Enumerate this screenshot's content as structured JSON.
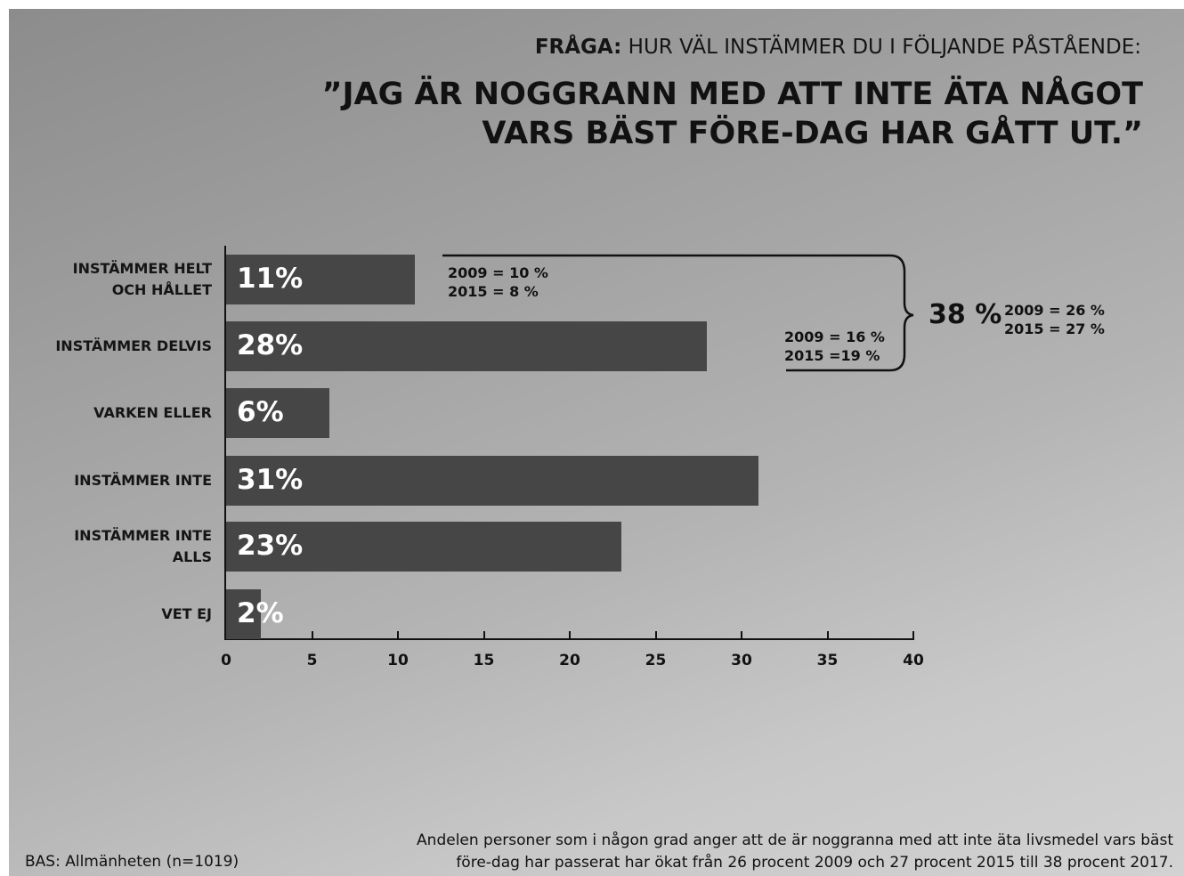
{
  "chart_data": {
    "type": "bar",
    "orientation": "horizontal",
    "question_label": "FRÅGA:",
    "question": "HUR VÄL INSTÄMMER DU I FÖLJANDE PÅSTÅENDE:",
    "title_lines": [
      "”JAG ÄR NOGGRANN MED ATT INTE ÄTA NÅGOT",
      "VARS BÄST FÖRE-DAG HAR GÅTT UT.”"
    ],
    "categories": [
      "INSTÄMMER HELT OCH HÅLLET",
      "INSTÄMMER DELVIS",
      "VARKEN ELLER",
      "INSTÄMMER INTE",
      "INSTÄMMER INTE ALLS",
      "VET EJ"
    ],
    "values": [
      11,
      28,
      6,
      31,
      23,
      2
    ],
    "value_labels": [
      "11%",
      "28%",
      "6%",
      "31%",
      "23%",
      "2%"
    ],
    "color": "#464646",
    "xlim": [
      0,
      40
    ],
    "xticks": [
      0,
      5,
      10,
      15,
      20,
      25,
      30,
      35,
      40
    ],
    "annotations": [
      {
        "lines": [
          "2009 = 10 %",
          "2015 = 8 %"
        ]
      },
      {
        "lines": [
          "2009 = 16 %",
          "2015 =19 %"
        ]
      }
    ],
    "bracket": {
      "label": "38 %",
      "lines": [
        "2009 = 26 %",
        "2015 = 27 %"
      ]
    },
    "source": "BAS: Allmänheten (n=1019)",
    "note_lines": [
      "Andelen personer som i någon grad anger att de är noggranna med att inte äta livsmedel vars bäst",
      "före-dag har passerat har ökat från 26 procent 2009 och 27 procent 2015 till 38 procent 2017."
    ]
  }
}
